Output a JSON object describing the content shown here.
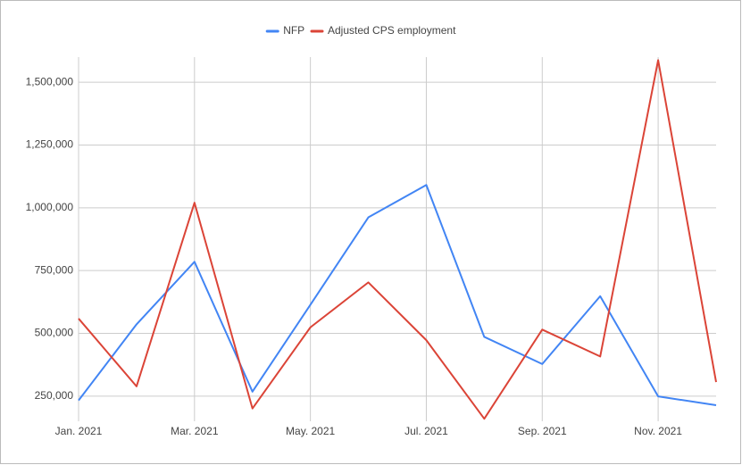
{
  "chart_data": {
    "type": "line",
    "categories": [
      "Jan. 2021",
      null,
      "Mar. 2021",
      null,
      "May. 2021",
      null,
      "Jul. 2021",
      null,
      "Sep. 2021",
      null,
      "Nov. 2021",
      null
    ],
    "series": [
      {
        "name": "NFP",
        "color": "#4285f4",
        "values": [
          233000,
          536000,
          785000,
          268000,
          614000,
          962000,
          1091000,
          486000,
          378000,
          648000,
          249000,
          214000
        ]
      },
      {
        "name": "Adjusted CPS employment",
        "color": "#db4437",
        "values": [
          559000,
          289000,
          1020000,
          201000,
          524000,
          703000,
          473000,
          160000,
          515000,
          408000,
          1588000,
          306000
        ]
      }
    ],
    "ylim": [
      150000,
      1600000
    ],
    "yticks": [
      {
        "value": 250000,
        "label": "250,000"
      },
      {
        "value": 500000,
        "label": "500,000"
      },
      {
        "value": 750000,
        "label": "750,000"
      },
      {
        "value": 1000000,
        "label": "1,000,000"
      },
      {
        "value": 1250000,
        "label": "1,250,000"
      },
      {
        "value": 1500000,
        "label": "1,500,000"
      }
    ],
    "grid": true,
    "legend": "top"
  }
}
